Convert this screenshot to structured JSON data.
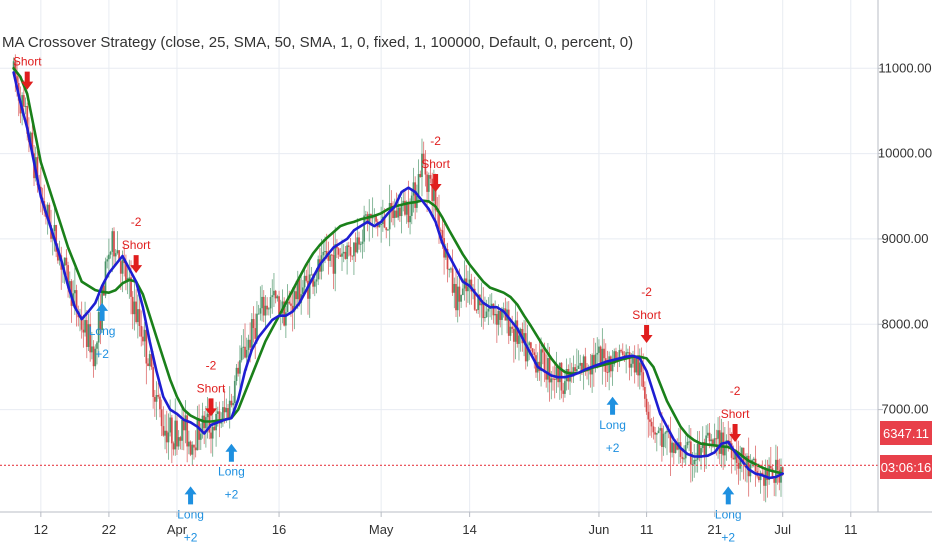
{
  "chart_data": {
    "type": "candlestick",
    "title": "MA Crossover Strategy (close, 25, SMA, 50, SMA, 1, 0, fixed, 1, 100000, Default, 0, percent, 0)",
    "ylim": [
      5800,
      11800
    ],
    "y_ticks": [
      {
        "value": 11000,
        "label": "11000.00"
      },
      {
        "value": 10000,
        "label": "10000.00"
      },
      {
        "value": 9000,
        "label": "9000.00"
      },
      {
        "value": 8000,
        "label": "8000.00"
      },
      {
        "value": 7000,
        "label": "7000.00"
      }
    ],
    "x_ticks": [
      {
        "day": 12,
        "label": "12"
      },
      {
        "day": 22,
        "label": "22"
      },
      {
        "day": 32,
        "label": "Apr"
      },
      {
        "day": 47,
        "label": "16"
      },
      {
        "day": 62,
        "label": "May"
      },
      {
        "day": 75,
        "label": "14"
      },
      {
        "day": 94,
        "label": "Jun"
      },
      {
        "day": 101,
        "label": "11"
      },
      {
        "day": 111,
        "label": "21"
      },
      {
        "day": 121,
        "label": "Jul"
      },
      {
        "day": 131,
        "label": "11"
      }
    ],
    "price_path": [
      [
        8,
        10980
      ],
      [
        10,
        10300
      ],
      [
        12,
        9500
      ],
      [
        14,
        9000
      ],
      [
        16,
        8500
      ],
      [
        18,
        8000
      ],
      [
        20,
        7650
      ],
      [
        21,
        8300
      ],
      [
        22,
        8850
      ],
      [
        23,
        8950
      ],
      [
        24,
        8650
      ],
      [
        25,
        8400
      ],
      [
        26,
        8100
      ],
      [
        27,
        7900
      ],
      [
        28,
        7500
      ],
      [
        30,
        6800
      ],
      [
        32,
        6700
      ],
      [
        33,
        6800
      ],
      [
        34,
        6600
      ],
      [
        35,
        6750
      ],
      [
        36,
        6850
      ],
      [
        37,
        6800
      ],
      [
        38,
        6850
      ],
      [
        39,
        6950
      ],
      [
        40,
        7100
      ],
      [
        41,
        7500
      ],
      [
        42,
        7700
      ],
      [
        44,
        8100
      ],
      [
        46,
        8300
      ],
      [
        48,
        8150
      ],
      [
        50,
        8400
      ],
      [
        52,
        8550
      ],
      [
        54,
        8750
      ],
      [
        56,
        8850
      ],
      [
        58,
        8900
      ],
      [
        60,
        9250
      ],
      [
        62,
        9150
      ],
      [
        64,
        9300
      ],
      [
        66,
        9400
      ],
      [
        67,
        9550
      ],
      [
        68,
        9900
      ],
      [
        69,
        9700
      ],
      [
        70,
        9400
      ],
      [
        71,
        9050
      ],
      [
        72,
        8600
      ],
      [
        73,
        8300
      ],
      [
        75,
        8400
      ],
      [
        77,
        8200
      ],
      [
        79,
        8150
      ],
      [
        81,
        8000
      ],
      [
        83,
        7700
      ],
      [
        85,
        7600
      ],
      [
        87,
        7450
      ],
      [
        89,
        7350
      ],
      [
        91,
        7450
      ],
      [
        93,
        7600
      ],
      [
        95,
        7550
      ],
      [
        97,
        7650
      ],
      [
        99,
        7550
      ],
      [
        100,
        7450
      ],
      [
        101,
        7100
      ],
      [
        102,
        6800
      ],
      [
        103,
        6700
      ],
      [
        104,
        6600
      ],
      [
        106,
        6500
      ],
      [
        108,
        6450
      ],
      [
        110,
        6550
      ],
      [
        112,
        6600
      ],
      [
        113,
        6650
      ],
      [
        114,
        6500
      ],
      [
        115,
        6400
      ],
      [
        116,
        6300
      ],
      [
        118,
        6200
      ],
      [
        120,
        6250
      ],
      [
        121,
        6350
      ]
    ],
    "series": [
      {
        "name": "SMA 25",
        "color": "#1e1ed2",
        "points": [
          [
            8,
            10950
          ],
          [
            9,
            10600
          ],
          [
            10,
            10300
          ],
          [
            11,
            9900
          ],
          [
            12,
            9500
          ],
          [
            13,
            9250
          ],
          [
            14,
            9000
          ],
          [
            15,
            8750
          ],
          [
            16,
            8450
          ],
          [
            17,
            8200
          ],
          [
            18,
            8060
          ],
          [
            19,
            8150
          ],
          [
            20,
            8250
          ],
          [
            21,
            8450
          ],
          [
            22,
            8600
          ],
          [
            23,
            8700
          ],
          [
            24,
            8800
          ],
          [
            25,
            8650
          ],
          [
            26,
            8500
          ],
          [
            27,
            8200
          ],
          [
            28,
            7800
          ],
          [
            29,
            7450
          ],
          [
            30,
            7150
          ],
          [
            31,
            7000
          ],
          [
            32,
            6950
          ],
          [
            33,
            6880
          ],
          [
            34,
            6850
          ],
          [
            35,
            6800
          ],
          [
            36,
            6720
          ],
          [
            37,
            6820
          ],
          [
            38,
            6850
          ],
          [
            39,
            6880
          ],
          [
            40,
            6900
          ],
          [
            41,
            7120
          ],
          [
            42,
            7450
          ],
          [
            43,
            7700
          ],
          [
            44,
            7850
          ],
          [
            45,
            7950
          ],
          [
            46,
            8050
          ],
          [
            47,
            8100
          ],
          [
            48,
            8100
          ],
          [
            49,
            8150
          ],
          [
            50,
            8250
          ],
          [
            51,
            8400
          ],
          [
            52,
            8550
          ],
          [
            53,
            8700
          ],
          [
            54,
            8800
          ],
          [
            55,
            8900
          ],
          [
            56,
            8950
          ],
          [
            57,
            9000
          ],
          [
            58,
            9100
          ],
          [
            59,
            9150
          ],
          [
            60,
            9200
          ],
          [
            61,
            9150
          ],
          [
            62,
            9200
          ],
          [
            63,
            9300
          ],
          [
            64,
            9380
          ],
          [
            65,
            9550
          ],
          [
            66,
            9600
          ],
          [
            67,
            9550
          ],
          [
            68,
            9450
          ],
          [
            69,
            9350
          ],
          [
            70,
            9200
          ],
          [
            71,
            8950
          ],
          [
            72,
            8800
          ],
          [
            73,
            8650
          ],
          [
            74,
            8500
          ],
          [
            75,
            8450
          ],
          [
            76,
            8350
          ],
          [
            77,
            8250
          ],
          [
            78,
            8200
          ],
          [
            79,
            8200
          ],
          [
            80,
            8150
          ],
          [
            81,
            8050
          ],
          [
            82,
            7950
          ],
          [
            83,
            7800
          ],
          [
            84,
            7650
          ],
          [
            85,
            7500
          ],
          [
            86,
            7450
          ],
          [
            87,
            7400
          ],
          [
            88,
            7380
          ],
          [
            89,
            7380
          ],
          [
            90,
            7400
          ],
          [
            91,
            7430
          ],
          [
            92,
            7470
          ],
          [
            93,
            7500
          ],
          [
            94,
            7530
          ],
          [
            95,
            7560
          ],
          [
            96,
            7580
          ],
          [
            97,
            7600
          ],
          [
            98,
            7620
          ],
          [
            99,
            7630
          ],
          [
            100,
            7600
          ],
          [
            101,
            7450
          ],
          [
            102,
            7200
          ],
          [
            103,
            6950
          ],
          [
            104,
            6800
          ],
          [
            105,
            6650
          ],
          [
            106,
            6550
          ],
          [
            107,
            6480
          ],
          [
            108,
            6450
          ],
          [
            109,
            6450
          ],
          [
            110,
            6460
          ],
          [
            111,
            6500
          ],
          [
            112,
            6600
          ],
          [
            113,
            6620
          ],
          [
            114,
            6500
          ],
          [
            115,
            6400
          ],
          [
            116,
            6300
          ],
          [
            117,
            6250
          ],
          [
            118,
            6230
          ],
          [
            119,
            6200
          ],
          [
            120,
            6210
          ],
          [
            121,
            6250
          ]
        ]
      },
      {
        "name": "SMA 50",
        "color": "#1a801a",
        "points": [
          [
            8,
            11000
          ],
          [
            9,
            10900
          ],
          [
            10,
            10700
          ],
          [
            11,
            10300
          ],
          [
            12,
            9900
          ],
          [
            13,
            9650
          ],
          [
            14,
            9400
          ],
          [
            15,
            9150
          ],
          [
            16,
            8900
          ],
          [
            17,
            8700
          ],
          [
            18,
            8500
          ],
          [
            19,
            8450
          ],
          [
            20,
            8400
          ],
          [
            21,
            8380
          ],
          [
            22,
            8370
          ],
          [
            23,
            8400
          ],
          [
            24,
            8480
          ],
          [
            25,
            8520
          ],
          [
            26,
            8500
          ],
          [
            27,
            8350
          ],
          [
            28,
            8100
          ],
          [
            29,
            7850
          ],
          [
            30,
            7600
          ],
          [
            31,
            7350
          ],
          [
            32,
            7150
          ],
          [
            33,
            7000
          ],
          [
            34,
            6930
          ],
          [
            35,
            6890
          ],
          [
            36,
            6860
          ],
          [
            37,
            6860
          ],
          [
            38,
            6870
          ],
          [
            39,
            6880
          ],
          [
            40,
            6900
          ],
          [
            41,
            7000
          ],
          [
            42,
            7200
          ],
          [
            43,
            7400
          ],
          [
            44,
            7600
          ],
          [
            45,
            7800
          ],
          [
            46,
            7950
          ],
          [
            47,
            8100
          ],
          [
            48,
            8250
          ],
          [
            49,
            8400
          ],
          [
            50,
            8550
          ],
          [
            51,
            8700
          ],
          [
            52,
            8830
          ],
          [
            53,
            8930
          ],
          [
            54,
            9010
          ],
          [
            55,
            9080
          ],
          [
            56,
            9150
          ],
          [
            57,
            9180
          ],
          [
            58,
            9200
          ],
          [
            59,
            9230
          ],
          [
            60,
            9250
          ],
          [
            61,
            9270
          ],
          [
            62,
            9300
          ],
          [
            63,
            9350
          ],
          [
            64,
            9380
          ],
          [
            65,
            9400
          ],
          [
            66,
            9420
          ],
          [
            67,
            9430
          ],
          [
            68,
            9450
          ],
          [
            69,
            9440
          ],
          [
            70,
            9380
          ],
          [
            71,
            9250
          ],
          [
            72,
            9100
          ],
          [
            73,
            8960
          ],
          [
            74,
            8820
          ],
          [
            75,
            8700
          ],
          [
            76,
            8600
          ],
          [
            77,
            8500
          ],
          [
            78,
            8430
          ],
          [
            79,
            8400
          ],
          [
            80,
            8370
          ],
          [
            81,
            8320
          ],
          [
            82,
            8230
          ],
          [
            83,
            8100
          ],
          [
            84,
            7980
          ],
          [
            85,
            7850
          ],
          [
            86,
            7720
          ],
          [
            87,
            7600
          ],
          [
            88,
            7500
          ],
          [
            89,
            7440
          ],
          [
            90,
            7420
          ],
          [
            91,
            7430
          ],
          [
            92,
            7460
          ],
          [
            93,
            7490
          ],
          [
            94,
            7510
          ],
          [
            95,
            7530
          ],
          [
            96,
            7550
          ],
          [
            97,
            7580
          ],
          [
            98,
            7600
          ],
          [
            99,
            7620
          ],
          [
            100,
            7620
          ],
          [
            101,
            7600
          ],
          [
            102,
            7500
          ],
          [
            103,
            7300
          ],
          [
            104,
            7100
          ],
          [
            105,
            6950
          ],
          [
            106,
            6800
          ],
          [
            107,
            6700
          ],
          [
            108,
            6640
          ],
          [
            109,
            6600
          ],
          [
            110,
            6590
          ],
          [
            111,
            6580
          ],
          [
            112,
            6570
          ],
          [
            113,
            6560
          ],
          [
            114,
            6520
          ],
          [
            115,
            6460
          ],
          [
            116,
            6400
          ],
          [
            117,
            6360
          ],
          [
            118,
            6320
          ],
          [
            119,
            6290
          ],
          [
            120,
            6270
          ],
          [
            121,
            6250
          ]
        ]
      }
    ],
    "signals": [
      {
        "type": "short",
        "day": 10,
        "price": 10750,
        "labels": [
          "",
          "Short"
        ]
      },
      {
        "type": "short",
        "day": 26,
        "price": 8600,
        "labels": [
          "-2",
          "Short"
        ]
      },
      {
        "type": "long",
        "day": 21,
        "price": 8250,
        "labels": [
          "Long",
          "+2"
        ]
      },
      {
        "type": "short",
        "day": 37,
        "price": 6920,
        "labels": [
          "-2",
          "Short"
        ]
      },
      {
        "type": "long",
        "day": 34,
        "price": 6100,
        "labels": [
          "Long",
          "+2"
        ]
      },
      {
        "type": "long",
        "day": 40,
        "price": 6600,
        "labels": [
          "Long",
          "+2"
        ]
      },
      {
        "type": "short",
        "day": 70,
        "price": 9550,
        "labels": [
          "-2",
          "Short"
        ]
      },
      {
        "type": "long",
        "day": 96,
        "price": 7150,
        "labels": [
          "Long",
          "+2"
        ]
      },
      {
        "type": "short",
        "day": 101,
        "price": 7780,
        "labels": [
          "-2",
          "Short"
        ]
      },
      {
        "type": "long",
        "day": 113,
        "price": 6100,
        "labels": [
          "Long",
          "+2"
        ]
      },
      {
        "type": "short",
        "day": 114,
        "price": 6620,
        "labels": [
          "-2",
          "Short"
        ]
      }
    ],
    "last_price": {
      "value": 6347.11,
      "label": "6347.11",
      "countdown": "03:06:16",
      "color": "#e8404a"
    },
    "colors": {
      "up": "#3a8a5a",
      "down": "#d23a3a",
      "long": "#1e90e0",
      "short": "#e01e1e",
      "grid": "#e8ecf2"
    }
  }
}
